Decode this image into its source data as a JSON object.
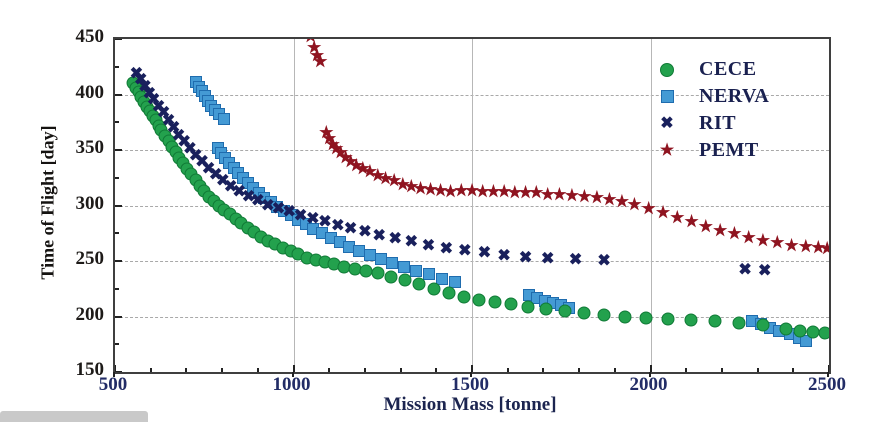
{
  "chart_data": {
    "type": "scatter",
    "title": "",
    "xlabel": "Mission Mass [tonne]",
    "ylabel": "Time of Flight [day]",
    "xlim": [
      500,
      2500
    ],
    "ylim": [
      150,
      450
    ],
    "x_major_ticks": [
      500,
      1000,
      1500,
      2000,
      2500
    ],
    "y_major_ticks": [
      150,
      200,
      250,
      300,
      350,
      400,
      450
    ],
    "x_minor_step": 100,
    "y_minor_step": 25,
    "grid": true,
    "legend_position": "upper right",
    "series": [
      {
        "name": "NERVA",
        "marker": "square",
        "color": "#449ad4",
        "edge": "#1f6cae",
        "points": [
          [
            728,
            411
          ],
          [
            736,
            407
          ],
          [
            744,
            403
          ],
          [
            752,
            399
          ],
          [
            760,
            394
          ],
          [
            770,
            390
          ],
          [
            780,
            386
          ],
          [
            792,
            382
          ],
          [
            804,
            378
          ],
          [
            788,
            352
          ],
          [
            798,
            347
          ],
          [
            808,
            343
          ],
          [
            820,
            338
          ],
          [
            832,
            334
          ],
          [
            844,
            329
          ],
          [
            858,
            325
          ],
          [
            872,
            320
          ],
          [
            886,
            316
          ],
          [
            902,
            311
          ],
          [
            918,
            307
          ],
          [
            936,
            303
          ],
          [
            954,
            299
          ],
          [
            972,
            295
          ],
          [
            992,
            291
          ],
          [
            1012,
            287
          ],
          [
            1034,
            283
          ],
          [
            1056,
            279
          ],
          [
            1080,
            275
          ],
          [
            1104,
            271
          ],
          [
            1130,
            267
          ],
          [
            1156,
            263
          ],
          [
            1184,
            259
          ],
          [
            1214,
            255
          ],
          [
            1244,
            252
          ],
          [
            1276,
            248
          ],
          [
            1310,
            245
          ],
          [
            1344,
            241
          ],
          [
            1380,
            238
          ],
          [
            1416,
            234
          ],
          [
            1452,
            231
          ],
          [
            1660,
            219
          ],
          [
            1682,
            217
          ],
          [
            1704,
            214
          ],
          [
            1726,
            212
          ],
          [
            1748,
            210
          ],
          [
            1772,
            208
          ],
          [
            2285,
            196
          ],
          [
            2310,
            193
          ],
          [
            2335,
            190
          ],
          [
            2360,
            187
          ],
          [
            2390,
            184
          ],
          [
            2415,
            181
          ],
          [
            2435,
            178
          ]
        ]
      },
      {
        "name": "CECE",
        "marker": "circle",
        "color": "#23a14d",
        "edge": "#107a36",
        "points": [
          [
            550,
            410
          ],
          [
            558,
            406
          ],
          [
            566,
            402
          ],
          [
            574,
            398
          ],
          [
            582,
            393
          ],
          [
            590,
            389
          ],
          [
            598,
            385
          ],
          [
            606,
            381
          ],
          [
            614,
            377
          ],
          [
            622,
            372
          ],
          [
            630,
            368
          ],
          [
            640,
            363
          ],
          [
            650,
            358
          ],
          [
            660,
            353
          ],
          [
            670,
            348
          ],
          [
            680,
            343
          ],
          [
            690,
            338
          ],
          [
            702,
            333
          ],
          [
            714,
            328
          ],
          [
            726,
            323
          ],
          [
            738,
            318
          ],
          [
            750,
            313
          ],
          [
            764,
            308
          ],
          [
            778,
            304
          ],
          [
            792,
            300
          ],
          [
            806,
            296
          ],
          [
            822,
            292
          ],
          [
            838,
            288
          ],
          [
            854,
            284
          ],
          [
            872,
            280
          ],
          [
            890,
            276
          ],
          [
            908,
            272
          ],
          [
            928,
            268
          ],
          [
            948,
            265
          ],
          [
            970,
            262
          ],
          [
            992,
            259
          ],
          [
            1014,
            256
          ],
          [
            1038,
            253
          ],
          [
            1062,
            251
          ],
          [
            1088,
            249
          ],
          [
            1114,
            247
          ],
          [
            1142,
            245
          ],
          [
            1172,
            243
          ],
          [
            1204,
            241
          ],
          [
            1238,
            239
          ],
          [
            1274,
            236
          ],
          [
            1312,
            233
          ],
          [
            1352,
            229
          ],
          [
            1394,
            225
          ],
          [
            1436,
            221
          ],
          [
            1478,
            218
          ],
          [
            1520,
            215
          ],
          [
            1565,
            213
          ],
          [
            1610,
            211
          ],
          [
            1658,
            209
          ],
          [
            1708,
            207
          ],
          [
            1760,
            205
          ],
          [
            1814,
            203
          ],
          [
            1870,
            201
          ],
          [
            1928,
            200
          ],
          [
            1988,
            199
          ],
          [
            2050,
            198
          ],
          [
            2114,
            197
          ],
          [
            2180,
            196
          ],
          [
            2248,
            194
          ],
          [
            2316,
            192
          ],
          [
            2380,
            189
          ],
          [
            2420,
            187
          ],
          [
            2455,
            186
          ],
          [
            2490,
            185
          ]
        ]
      },
      {
        "name": "RIT",
        "marker": "x",
        "color": "#19205c",
        "points": [
          [
            560,
            418
          ],
          [
            572,
            412
          ],
          [
            584,
            406
          ],
          [
            596,
            400
          ],
          [
            608,
            394
          ],
          [
            622,
            388
          ],
          [
            636,
            382
          ],
          [
            650,
            375
          ],
          [
            664,
            369
          ],
          [
            678,
            362
          ],
          [
            694,
            356
          ],
          [
            710,
            350
          ],
          [
            726,
            344
          ],
          [
            744,
            338
          ],
          [
            762,
            332
          ],
          [
            782,
            327
          ],
          [
            802,
            321
          ],
          [
            824,
            316
          ],
          [
            848,
            311
          ],
          [
            874,
            307
          ],
          [
            900,
            303
          ],
          [
            928,
            299
          ],
          [
            958,
            296
          ],
          [
            988,
            293
          ],
          [
            1020,
            290
          ],
          [
            1054,
            287
          ],
          [
            1088,
            284
          ],
          [
            1124,
            281
          ],
          [
            1160,
            278
          ],
          [
            1200,
            275
          ],
          [
            1240,
            272
          ],
          [
            1285,
            269
          ],
          [
            1330,
            266
          ],
          [
            1378,
            263
          ],
          [
            1428,
            260
          ],
          [
            1480,
            258
          ],
          [
            1535,
            256
          ],
          [
            1590,
            254
          ],
          [
            1650,
            252
          ],
          [
            1712,
            251
          ],
          [
            1790,
            250
          ],
          [
            1870,
            249
          ],
          [
            2265,
            241
          ],
          [
            2320,
            240
          ]
        ]
      },
      {
        "name": "PEMT",
        "marker": "star",
        "color": "#8f1420",
        "points": [
          [
            1048,
            451
          ],
          [
            1058,
            441
          ],
          [
            1066,
            434
          ],
          [
            1075,
            428
          ],
          [
            1092,
            364
          ],
          [
            1100,
            359
          ],
          [
            1110,
            354
          ],
          [
            1120,
            350
          ],
          [
            1132,
            346
          ],
          [
            1146,
            342
          ],
          [
            1160,
            338
          ],
          [
            1176,
            335
          ],
          [
            1194,
            332
          ],
          [
            1214,
            329
          ],
          [
            1236,
            326
          ],
          [
            1258,
            323
          ],
          [
            1282,
            321
          ],
          [
            1306,
            318
          ],
          [
            1330,
            316
          ],
          [
            1356,
            314
          ],
          [
            1384,
            313
          ],
          [
            1412,
            312
          ],
          [
            1440,
            311
          ],
          [
            1470,
            312
          ],
          [
            1500,
            312
          ],
          [
            1530,
            311
          ],
          [
            1560,
            311
          ],
          [
            1590,
            311
          ],
          [
            1620,
            310
          ],
          [
            1650,
            310
          ],
          [
            1680,
            310
          ],
          [
            1712,
            309
          ],
          [
            1745,
            309
          ],
          [
            1780,
            308
          ],
          [
            1815,
            307
          ],
          [
            1850,
            306
          ],
          [
            1885,
            304
          ],
          [
            1920,
            302
          ],
          [
            1955,
            300
          ],
          [
            1995,
            296
          ],
          [
            2035,
            292
          ],
          [
            2075,
            288
          ],
          [
            2115,
            284
          ],
          [
            2155,
            280
          ],
          [
            2195,
            276
          ],
          [
            2235,
            273
          ],
          [
            2275,
            270
          ],
          [
            2315,
            267
          ],
          [
            2355,
            265
          ],
          [
            2395,
            263
          ],
          [
            2435,
            262
          ],
          [
            2470,
            261
          ],
          [
            2495,
            260
          ]
        ]
      }
    ]
  }
}
